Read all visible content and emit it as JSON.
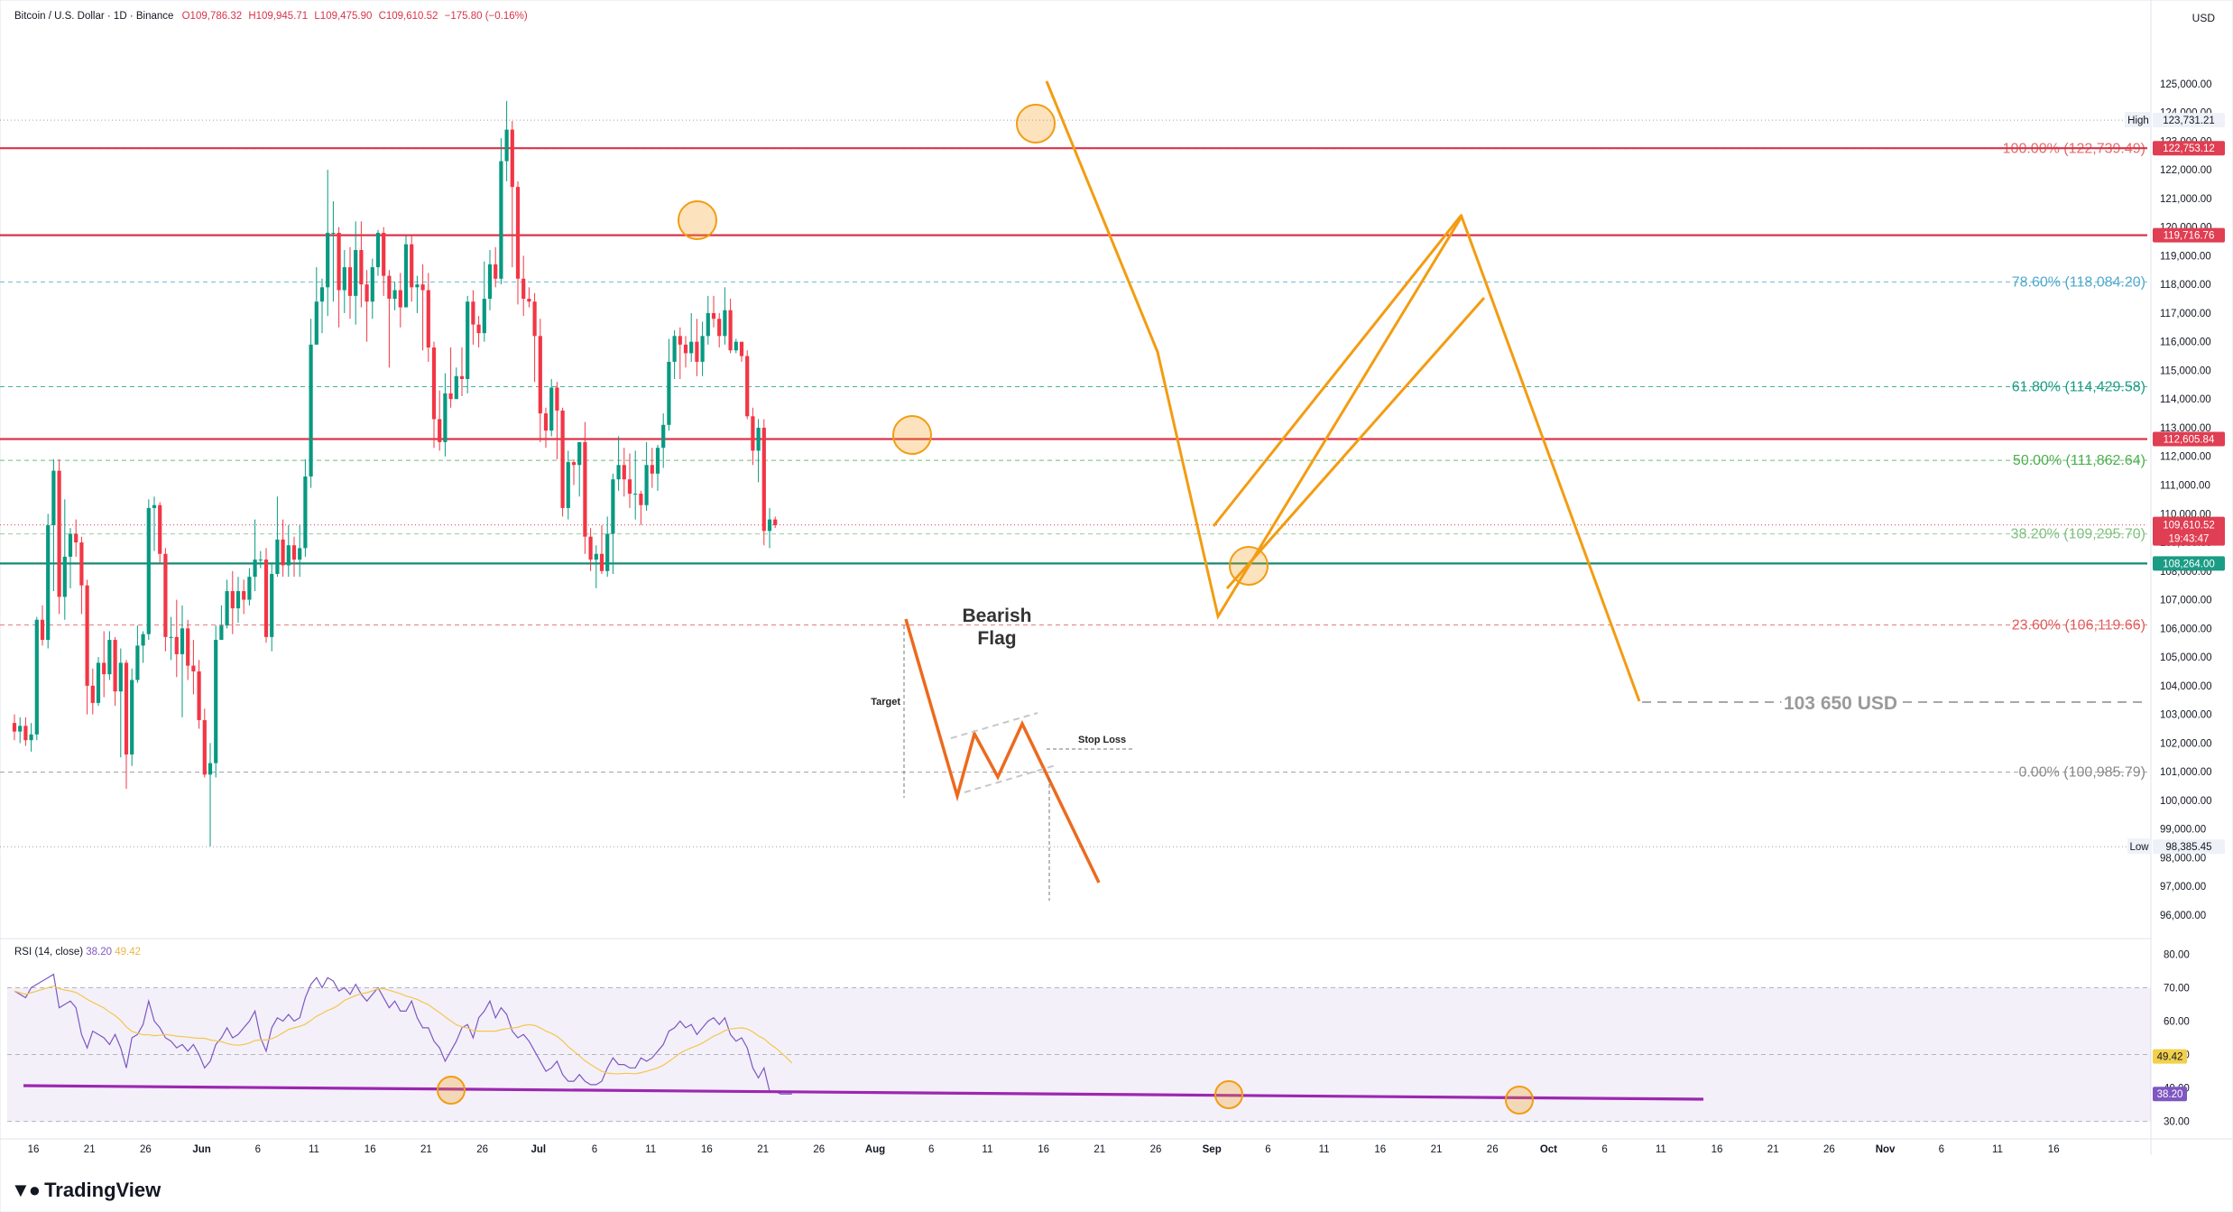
{
  "header": {
    "symbol": "Bitcoin / U.S. Dollar · 1D · Binance",
    "open": "O109,786.32",
    "high": "H109,945.71",
    "low": "L109,475.90",
    "close": "C109,610.52",
    "change": "−175.80 (−0.16%)"
  },
  "currency_label": "USD",
  "brand": "TradingView",
  "rsi_header": {
    "name": "RSI (14, close)",
    "value1": "38.20",
    "value2": "49.42"
  },
  "price_axis": {
    "ticks": [
      "125,000.00",
      "124,000.00",
      "123,000.00",
      "122,000.00",
      "121,000.00",
      "120,000.00",
      "119,000.00",
      "118,000.00",
      "117,000.00",
      "116,000.00",
      "115,000.00",
      "114,000.00",
      "113,000.00",
      "112,000.00",
      "111,000.00",
      "110,000.00",
      "109,000.00",
      "108,000.00",
      "107,000.00",
      "106,000.00",
      "105,000.00",
      "104,000.00",
      "103,000.00",
      "102,000.00",
      "101,000.00",
      "100,000.00",
      "99,000.00",
      "98,000.00",
      "97,000.00",
      "96,000.00"
    ],
    "tick_values": [
      125000,
      124000,
      123000,
      122000,
      121000,
      120000,
      119000,
      118000,
      117000,
      116000,
      115000,
      114000,
      113000,
      112000,
      111000,
      110000,
      109000,
      108000,
      107000,
      106000,
      105000,
      104000,
      103000,
      102000,
      101000,
      100000,
      99000,
      98000,
      97000,
      96000
    ],
    "range": [
      95400,
      126600
    ]
  },
  "rsi_axis": {
    "ticks": [
      "80.00",
      "70.00",
      "60.00",
      "50.00",
      "40.00",
      "30.00"
    ],
    "tick_values": [
      80,
      70,
      60,
      50,
      40,
      30
    ],
    "range": [
      28,
      82
    ]
  },
  "time_axis": {
    "labels": [
      "16",
      "21",
      "26",
      "Jun",
      "6",
      "11",
      "16",
      "21",
      "26",
      "Jul",
      "6",
      "11",
      "16",
      "21",
      "26",
      "Aug",
      "6",
      "11",
      "16",
      "21",
      "26",
      "Sep",
      "6",
      "11",
      "16",
      "21",
      "26",
      "Oct",
      "6",
      "11",
      "16",
      "21",
      "26",
      "Nov",
      "6",
      "11",
      "16"
    ],
    "bold": [
      "Jun",
      "Jul",
      "Aug",
      "Sep",
      "Oct",
      "Nov"
    ]
  },
  "badges": {
    "high": {
      "label": "High",
      "value": "123,731.21",
      "price": 123731
    },
    "low": {
      "label": "Low",
      "value": "98,385.45",
      "price": 98385
    },
    "res1": {
      "value": "122,753.12",
      "price": 122753,
      "color": "#e03e52"
    },
    "res2": {
      "value": "119,716.76",
      "price": 119717,
      "color": "#e03e52"
    },
    "res3": {
      "value": "112,605.84",
      "price": 112606,
      "color": "#e03e52"
    },
    "current": {
      "value": "109,610.52",
      "countdown": "19:43:47",
      "price": 109610,
      "color": "#e03e52"
    },
    "support": {
      "value": "108,264.00",
      "price": 108264,
      "color": "#1b9c85"
    },
    "rsi1": {
      "value": "49.42",
      "color": "#f2d04b"
    },
    "rsi2": {
      "value": "38.20",
      "color": "#7e57c2"
    }
  },
  "fib_levels": [
    {
      "label": "100.00% (122,739.49)",
      "price": 122739,
      "color": "#e06b6b"
    },
    {
      "label": "78.60% (118,084.20)",
      "price": 118084,
      "color": "#4fa9cc"
    },
    {
      "label": "61.80% (114,429.58)",
      "price": 114430,
      "color": "#1b9c85"
    },
    {
      "label": "50.00% (111,862.64)",
      "price": 111863,
      "color": "#4caf50"
    },
    {
      "label": "38.20% (109,295.70)",
      "price": 109296,
      "color": "#80c080"
    },
    {
      "label": "23.60% (106,119.66)",
      "price": 106120,
      "color": "#e05c5c"
    },
    {
      "label": "0.00% (100,985.79)",
      "price": 100986,
      "color": "#888888"
    }
  ],
  "annotations": {
    "target_price": "103 650 USD",
    "bearish_flag": [
      "Bearish",
      "Flag"
    ],
    "target_label": "Target",
    "stop_loss_label": "Stop Loss"
  },
  "chart_data": {
    "type": "candlestick",
    "title": "Bitcoin / U.S. Dollar · 1D · Binance",
    "ylabel": "USD",
    "ylim": [
      95400,
      126600
    ],
    "x_axis_start": "May 14",
    "candles": [
      [
        102700,
        102400,
        103000,
        102100
      ],
      [
        102400,
        102600,
        102900,
        102000
      ],
      [
        102600,
        102100,
        102900,
        101900
      ],
      [
        102100,
        102300,
        102700,
        101700
      ],
      [
        102300,
        106300,
        106400,
        102100
      ],
      [
        106300,
        105600,
        106800,
        105400
      ],
      [
        105600,
        109600,
        110000,
        105300
      ],
      [
        109600,
        111500,
        111900,
        107300
      ],
      [
        111500,
        107100,
        111900,
        106500
      ],
      [
        107100,
        108500,
        110500,
        106300
      ],
      [
        108500,
        109300,
        109500,
        107400
      ],
      [
        109300,
        109000,
        109800,
        108500
      ],
      [
        109000,
        107500,
        109200,
        106500
      ],
      [
        107500,
        104000,
        107700,
        103000
      ],
      [
        104000,
        103400,
        104600,
        103000
      ],
      [
        103400,
        104800,
        105000,
        103300
      ],
      [
        104800,
        104400,
        105900,
        103600
      ],
      [
        104400,
        105600,
        105900,
        104200
      ],
      [
        105600,
        103800,
        105700,
        103300
      ],
      [
        103800,
        104800,
        105300,
        101500
      ],
      [
        104800,
        101600,
        104900,
        100400
      ],
      [
        101600,
        104200,
        104600,
        101200
      ],
      [
        104200,
        105400,
        106100,
        104100
      ],
      [
        105400,
        105800,
        105900,
        104800
      ],
      [
        105800,
        110200,
        110500,
        105600
      ],
      [
        110200,
        110300,
        110600,
        108700
      ],
      [
        110300,
        108600,
        110400,
        108300
      ],
      [
        108600,
        105700,
        108800,
        105200
      ],
      [
        105700,
        105700,
        106400,
        104900
      ],
      [
        105700,
        105100,
        107000,
        104300
      ],
      [
        105100,
        106000,
        106800,
        102900
      ],
      [
        106000,
        104700,
        106300,
        104200
      ],
      [
        104700,
        104500,
        105600,
        103700
      ],
      [
        104500,
        102800,
        104900,
        102500
      ],
      [
        102800,
        100900,
        103200,
        100800
      ],
      [
        100900,
        101300,
        102000,
        98400
      ],
      [
        101300,
        105600,
        106100,
        100800
      ],
      [
        105600,
        106100,
        106800,
        105600
      ],
      [
        106100,
        107300,
        107700,
        106000
      ],
      [
        107300,
        106700,
        108000,
        105800
      ],
      [
        106700,
        107300,
        107800,
        106200
      ],
      [
        107300,
        107000,
        107700,
        106500
      ],
      [
        107000,
        107800,
        108100,
        106800
      ],
      [
        107800,
        108400,
        109800,
        107300
      ],
      [
        108400,
        108400,
        108700,
        108100
      ],
      [
        108400,
        105700,
        108800,
        105500
      ],
      [
        105700,
        107900,
        108300,
        105200
      ],
      [
        107900,
        109100,
        110600,
        107800
      ],
      [
        109100,
        108200,
        109800,
        107800
      ],
      [
        108200,
        108900,
        109600,
        107800
      ],
      [
        108900,
        108400,
        109200,
        107800
      ],
      [
        108400,
        108800,
        109600,
        107800
      ],
      [
        108800,
        111300,
        111900,
        108500
      ],
      [
        111300,
        115900,
        116800,
        110900
      ],
      [
        115900,
        117400,
        118600,
        115900
      ],
      [
        117400,
        117900,
        118200,
        116300
      ],
      [
        117900,
        119800,
        122000,
        116900
      ],
      [
        119800,
        119800,
        120900,
        117400
      ],
      [
        119800,
        117800,
        120000,
        116500
      ],
      [
        117800,
        118600,
        119200,
        117000
      ],
      [
        118600,
        117600,
        119300,
        116800
      ],
      [
        117600,
        119200,
        120200,
        116600
      ],
      [
        119200,
        118000,
        120200,
        117200
      ],
      [
        118000,
        117400,
        118500,
        116000
      ],
      [
        117400,
        118600,
        118900,
        116800
      ],
      [
        118600,
        119800,
        119900,
        118300
      ],
      [
        119800,
        118300,
        120000,
        117600
      ],
      [
        118300,
        117500,
        118500,
        115100
      ],
      [
        117500,
        117800,
        118100,
        117100
      ],
      [
        117800,
        117200,
        118400,
        116500
      ],
      [
        117200,
        119400,
        119700,
        117600
      ],
      [
        119400,
        117900,
        119700,
        117400
      ],
      [
        117900,
        118000,
        118300,
        117000
      ],
      [
        118000,
        117800,
        118700,
        115700
      ],
      [
        117800,
        115800,
        118400,
        115300
      ],
      [
        115800,
        113300,
        116000,
        112300
      ],
      [
        113300,
        112500,
        114300,
        112200
      ],
      [
        112500,
        114200,
        114900,
        112000
      ],
      [
        114200,
        114000,
        115800,
        113700
      ],
      [
        114000,
        114800,
        115100,
        114000
      ],
      [
        114800,
        114700,
        115800,
        114100
      ],
      [
        114700,
        117400,
        117600,
        114200
      ],
      [
        117400,
        116600,
        117800,
        115900
      ],
      [
        116600,
        116300,
        116900,
        115800
      ],
      [
        116300,
        117500,
        118800,
        116000
      ],
      [
        117500,
        118700,
        119200,
        117100
      ],
      [
        118700,
        118200,
        119300,
        117900
      ],
      [
        118200,
        122300,
        123100,
        118000
      ],
      [
        122300,
        123400,
        124400,
        121600
      ],
      [
        123400,
        121400,
        123700,
        118600
      ],
      [
        121400,
        118200,
        121600,
        117300
      ],
      [
        118200,
        117500,
        119000,
        116900
      ],
      [
        117500,
        117400,
        117900,
        117200
      ],
      [
        117400,
        116200,
        117700,
        114600
      ],
      [
        116200,
        113500,
        116800,
        112500
      ],
      [
        113500,
        112900,
        113700,
        112300
      ],
      [
        112900,
        114400,
        114700,
        112700
      ],
      [
        114400,
        113600,
        114600,
        111900
      ],
      [
        113600,
        110200,
        113700,
        109900
      ],
      [
        110200,
        111800,
        112200,
        109800
      ],
      [
        111800,
        111700,
        111900,
        111000
      ],
      [
        111700,
        112500,
        112500,
        110600
      ],
      [
        112500,
        109200,
        113200,
        108600
      ],
      [
        109200,
        108400,
        109500,
        108000
      ],
      [
        108400,
        108600,
        108900,
        107400
      ],
      [
        108600,
        108000,
        109600,
        107900
      ],
      [
        108000,
        109300,
        109900,
        107800
      ],
      [
        109300,
        111200,
        111400,
        107900
      ],
      [
        111200,
        111700,
        112700,
        110800
      ],
      [
        111700,
        111200,
        112300,
        110600
      ],
      [
        111200,
        110700,
        112100,
        110200
      ],
      [
        110700,
        110700,
        112200,
        109800
      ],
      [
        110700,
        110300,
        110800,
        109600
      ],
      [
        110300,
        111700,
        112500,
        110100
      ],
      [
        111700,
        111400,
        112300,
        110900
      ],
      [
        111400,
        112300,
        112400,
        110800
      ],
      [
        112300,
        113100,
        113500,
        111600
      ],
      [
        113100,
        115300,
        116100,
        112900
      ],
      [
        115300,
        116200,
        116400,
        114700
      ],
      [
        116200,
        115900,
        116500,
        114700
      ],
      [
        115900,
        115600,
        116200,
        115100
      ],
      [
        115600,
        116000,
        117000,
        115300
      ],
      [
        116000,
        115300,
        116800,
        114800
      ],
      [
        115300,
        116200,
        116700,
        114800
      ],
      [
        116200,
        117000,
        117600,
        115900
      ],
      [
        117000,
        116800,
        117600,
        116500
      ],
      [
        116800,
        116200,
        117000,
        115800
      ],
      [
        116200,
        117100,
        117900,
        115900
      ],
      [
        117100,
        115700,
        117500,
        115600
      ],
      [
        115700,
        116000,
        116100,
        115600
      ],
      [
        116000,
        115500,
        115800,
        115300
      ],
      [
        115500,
        113400,
        115700,
        113300
      ],
      [
        113400,
        112200,
        113700,
        111700
      ],
      [
        112200,
        113000,
        113300,
        111100
      ],
      [
        113000,
        109400,
        113300,
        108900
      ],
      [
        109400,
        109800,
        110200,
        108800
      ],
      [
        109800,
        109600,
        109900,
        109500
      ]
    ],
    "rsi": [
      69,
      68,
      67,
      70,
      71,
      72,
      73,
      74,
      64,
      65,
      66,
      64,
      56,
      52,
      57,
      56,
      55,
      53,
      56,
      52,
      46,
      55,
      56,
      59,
      66,
      60,
      58,
      55,
      54,
      52,
      53,
      51,
      53,
      50,
      46,
      48,
      53,
      55,
      58,
      55,
      56,
      58,
      60,
      63,
      55,
      51,
      58,
      61,
      60,
      62,
      60,
      61,
      67,
      71,
      73,
      70,
      73,
      72,
      69,
      70,
      68,
      71,
      68,
      66,
      68,
      70,
      67,
      64,
      66,
      63,
      63,
      66,
      61,
      58,
      58,
      54,
      52,
      48,
      51,
      54,
      58,
      59,
      55,
      61,
      63,
      66,
      61,
      64,
      62,
      57,
      55,
      56,
      54,
      51,
      48,
      45,
      46,
      48,
      44,
      42,
      42,
      44,
      42,
      41,
      41,
      42,
      46,
      49,
      47,
      47,
      46,
      46,
      49,
      48,
      49,
      51,
      53,
      57,
      58,
      60,
      58,
      59,
      56,
      58,
      60,
      61,
      59,
      61,
      56,
      54,
      55,
      52,
      46,
      43,
      46,
      39,
      39,
      38.2,
      38.2,
      38.2
    ]
  }
}
